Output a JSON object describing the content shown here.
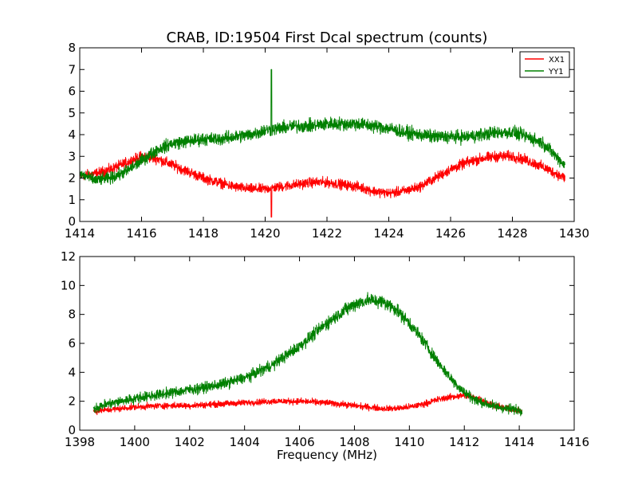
{
  "chart_data": [
    {
      "type": "line",
      "title": "CRAB, ID:19504 First Dcal spectrum (counts)",
      "xlabel": "",
      "ylabel": "",
      "xlim": [
        1414,
        1430
      ],
      "ylim": [
        0,
        8
      ],
      "x_ticks": [
        1414,
        1416,
        1418,
        1420,
        1422,
        1424,
        1426,
        1428,
        1430
      ],
      "y_ticks": [
        0,
        1,
        2,
        3,
        4,
        5,
        6,
        7,
        8
      ],
      "legend": {
        "position": "top-right",
        "entries": [
          "XX1",
          "YY1"
        ]
      },
      "grid": false,
      "series": [
        {
          "name": "XX1",
          "color": "#ff0000",
          "noise": 0.3,
          "x": [
            1414.0,
            1414.5,
            1415.0,
            1415.5,
            1416.0,
            1416.5,
            1417.0,
            1417.5,
            1418.0,
            1418.5,
            1419.0,
            1419.5,
            1420.0,
            1420.5,
            1421.0,
            1421.5,
            1422.0,
            1422.5,
            1423.0,
            1423.5,
            1424.0,
            1424.5,
            1425.0,
            1425.5,
            1426.0,
            1426.5,
            1427.0,
            1427.5,
            1428.0,
            1428.5,
            1429.0,
            1429.7
          ],
          "values": [
            2.1,
            2.2,
            2.4,
            2.7,
            3.0,
            2.9,
            2.6,
            2.3,
            2.0,
            1.8,
            1.6,
            1.5,
            1.5,
            1.6,
            1.7,
            1.8,
            1.8,
            1.7,
            1.6,
            1.4,
            1.3,
            1.4,
            1.6,
            2.0,
            2.4,
            2.7,
            2.9,
            3.0,
            3.0,
            2.8,
            2.5,
            2.0
          ]
        },
        {
          "name": "YY1",
          "color": "#008000",
          "noise": 0.35,
          "x": [
            1414.0,
            1414.5,
            1415.0,
            1415.5,
            1416.0,
            1416.5,
            1417.0,
            1417.5,
            1418.0,
            1418.5,
            1419.0,
            1419.5,
            1420.0,
            1420.5,
            1421.0,
            1421.5,
            1422.0,
            1422.5,
            1423.0,
            1423.5,
            1424.0,
            1424.5,
            1425.0,
            1425.5,
            1426.0,
            1426.5,
            1427.0,
            1427.5,
            1428.0,
            1428.5,
            1429.0,
            1429.7
          ],
          "values": [
            2.2,
            1.9,
            2.0,
            2.3,
            2.8,
            3.3,
            3.6,
            3.7,
            3.8,
            3.8,
            3.9,
            4.0,
            4.2,
            4.3,
            4.4,
            4.4,
            4.5,
            4.5,
            4.5,
            4.4,
            4.3,
            4.1,
            4.0,
            3.9,
            3.9,
            3.9,
            4.0,
            4.1,
            4.1,
            3.9,
            3.6,
            2.6
          ]
        }
      ],
      "annotations": [
        {
          "series": "YY1",
          "x": 1420.2,
          "y": 7.0
        },
        {
          "series": "XX1",
          "x": 1420.2,
          "y": 0.2
        }
      ]
    },
    {
      "type": "line",
      "title": "",
      "xlabel": "Frequency (MHz)",
      "ylabel": "",
      "xlim": [
        1398,
        1416
      ],
      "ylim": [
        0,
        12
      ],
      "x_ticks": [
        1398,
        1400,
        1402,
        1404,
        1406,
        1408,
        1410,
        1412,
        1414,
        1416
      ],
      "y_ticks": [
        0,
        2,
        4,
        6,
        8,
        10,
        12
      ],
      "grid": false,
      "series": [
        {
          "name": "XX1",
          "color": "#ff0000",
          "noise": 0.28,
          "x": [
            1398.5,
            1399.0,
            1400.0,
            1401.0,
            1402.0,
            1403.0,
            1404.0,
            1405.0,
            1406.0,
            1407.0,
            1408.0,
            1408.5,
            1409.0,
            1409.5,
            1410.0,
            1410.5,
            1411.0,
            1411.5,
            1412.0,
            1412.5,
            1413.0,
            1413.5,
            1414.1
          ],
          "values": [
            1.3,
            1.4,
            1.6,
            1.7,
            1.7,
            1.8,
            1.9,
            2.0,
            2.0,
            1.9,
            1.7,
            1.6,
            1.5,
            1.5,
            1.6,
            1.8,
            2.1,
            2.3,
            2.4,
            2.2,
            1.8,
            1.5,
            1.3
          ]
        },
        {
          "name": "YY1",
          "color": "#008000",
          "noise": 0.45,
          "x": [
            1398.5,
            1399.0,
            1400.0,
            1401.0,
            1402.0,
            1403.0,
            1404.0,
            1405.0,
            1406.0,
            1406.5,
            1407.0,
            1407.5,
            1408.0,
            1408.5,
            1409.0,
            1409.5,
            1410.0,
            1410.5,
            1411.0,
            1411.5,
            1412.0,
            1412.5,
            1413.0,
            1413.5,
            1414.1
          ],
          "values": [
            1.5,
            1.8,
            2.2,
            2.5,
            2.8,
            3.1,
            3.6,
            4.5,
            5.8,
            6.6,
            7.4,
            8.1,
            8.7,
            9.0,
            8.9,
            8.4,
            7.4,
            6.2,
            4.8,
            3.6,
            2.6,
            2.0,
            1.7,
            1.5,
            1.4
          ]
        }
      ]
    }
  ]
}
